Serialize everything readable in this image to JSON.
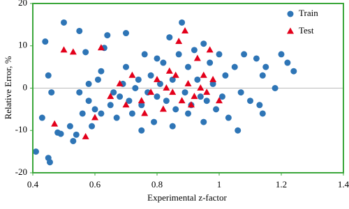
{
  "chart_data": {
    "type": "scatter",
    "xlabel": "Experimental z-factor",
    "ylabel": "Relative Error, %",
    "xlim": [
      0.4,
      1.4
    ],
    "xticks": [
      0.4,
      0.6,
      0.8,
      1,
      1.2,
      1.4
    ],
    "ylim": [
      -20,
      20
    ],
    "yticks": [
      -20,
      -10,
      0,
      10,
      20
    ],
    "legend": "top-right",
    "frame_color": "#3aa63a",
    "series": [
      {
        "name": "Train",
        "color": "#2e75b6",
        "marker": "circle",
        "x": [
          0.41,
          0.43,
          0.44,
          0.45,
          0.455,
          0.45,
          0.46,
          0.48,
          0.49,
          0.5,
          0.52,
          0.53,
          0.54,
          0.55,
          0.56,
          0.57,
          0.58,
          0.59,
          0.6,
          0.61,
          0.62,
          0.63,
          0.64,
          0.65,
          0.66,
          0.67,
          0.68,
          0.69,
          0.7,
          0.71,
          0.72,
          0.73,
          0.74,
          0.75,
          0.76,
          0.77,
          0.78,
          0.79,
          0.8,
          0.81,
          0.82,
          0.83,
          0.84,
          0.85,
          0.86,
          0.87,
          0.88,
          0.89,
          0.9,
          0.91,
          0.92,
          0.93,
          0.94,
          0.95,
          0.96,
          0.97,
          0.98,
          0.99,
          1.0,
          1.01,
          1.02,
          1.03,
          1.05,
          1.07,
          1.08,
          1.1,
          1.12,
          1.13,
          1.14,
          1.14,
          1.15,
          1.18,
          1.2,
          1.22,
          1.24,
          0.62,
          0.75,
          0.85,
          0.95,
          1.06,
          0.55,
          0.58,
          0.9,
          0.8,
          0.7
        ],
        "values": [
          -15,
          -7,
          11,
          -16.5,
          -17.5,
          3,
          -1,
          -10.5,
          -10.8,
          15.5,
          -9,
          -12.5,
          -11,
          13.5,
          -6,
          8.5,
          -3,
          -9,
          -5,
          2,
          4,
          9.5,
          12.5,
          -4,
          -1,
          -7,
          -2,
          1,
          13,
          -3,
          -6,
          0,
          2,
          -4,
          8,
          -1,
          3,
          -8,
          -2,
          1,
          6,
          -3,
          12,
          2,
          -5,
          8,
          15.5,
          -1,
          5,
          -4,
          9,
          2,
          -2,
          10.5,
          -3,
          6,
          1,
          -5,
          8,
          -2,
          3,
          -7,
          5,
          -1,
          8,
          -3,
          7,
          -4,
          -6,
          3,
          5,
          0,
          8,
          6,
          4,
          -6,
          -10,
          -9,
          -8,
          -10,
          -1,
          1,
          -6,
          7,
          5
        ]
      },
      {
        "name": "Test",
        "color": "#e3001b",
        "marker": "triangle",
        "x": [
          0.47,
          0.5,
          0.53,
          0.57,
          0.6,
          0.62,
          0.65,
          0.68,
          0.7,
          0.72,
          0.75,
          0.78,
          0.8,
          0.82,
          0.84,
          0.85,
          0.87,
          0.88,
          0.9,
          0.92,
          0.93,
          0.95,
          0.96,
          0.98,
          1.0,
          0.89,
          0.97,
          0.76,
          0.83,
          0.91,
          0.94,
          0.86
        ],
        "values": [
          -8.5,
          9,
          8.5,
          -11.5,
          -7,
          9.5,
          -2,
          1,
          -4,
          3,
          -3,
          -1,
          2,
          -5,
          4,
          -1,
          11,
          -3,
          1,
          -2,
          7,
          3,
          -1,
          2,
          -3,
          13.5,
          9,
          -6,
          0,
          -4,
          0,
          3
        ]
      }
    ]
  }
}
